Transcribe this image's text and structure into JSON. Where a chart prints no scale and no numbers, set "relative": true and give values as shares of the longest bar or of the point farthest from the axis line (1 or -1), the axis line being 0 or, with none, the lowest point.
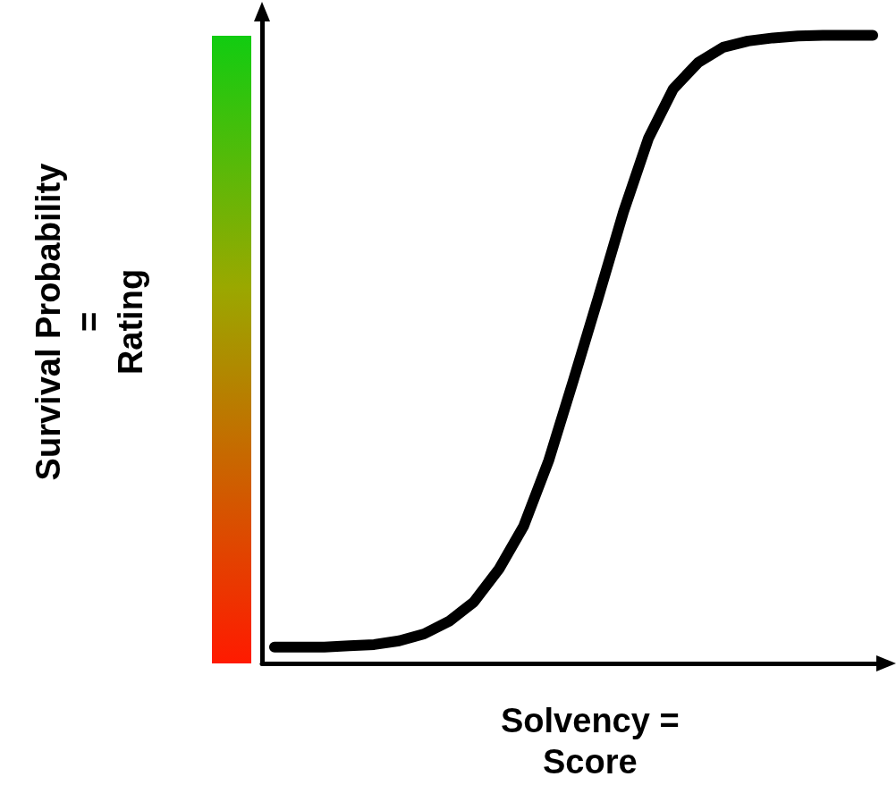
{
  "chart_data": {
    "type": "line",
    "relative": true,
    "xlabel": "Solvency =\nScore",
    "ylabel": "Survival Probability\n=\nRating",
    "categories": [
      null,
      null,
      null,
      null,
      null,
      null,
      null,
      null,
      null,
      null,
      null,
      null,
      null,
      null,
      null,
      null,
      null,
      null,
      null,
      null,
      null,
      null,
      null,
      null,
      null
    ],
    "series": [
      {
        "color": "#000000",
        "values": [
          0.026,
          0.026,
          0.026,
          0.028,
          0.03,
          0.036,
          0.047,
          0.067,
          0.098,
          0.15,
          0.219,
          0.323,
          0.452,
          0.584,
          0.719,
          0.836,
          0.915,
          0.957,
          0.981,
          0.991,
          0.996,
          0.999,
          1,
          1,
          1
        ]
      }
    ],
    "grid": false
  }
}
